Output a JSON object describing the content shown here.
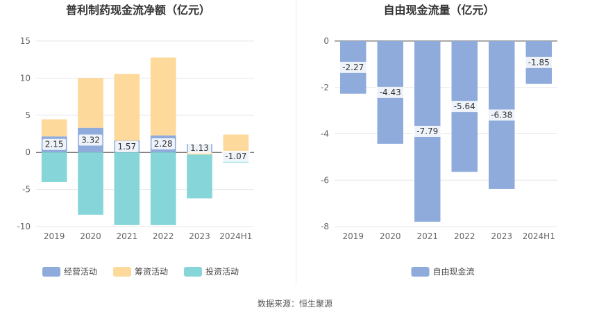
{
  "source": "数据来源：恒生聚源",
  "chart_data": [
    {
      "type": "bar",
      "stacked": true,
      "title": "普利制药现金流净额（亿元）",
      "categories": [
        "2019",
        "2020",
        "2021",
        "2022",
        "2023",
        "2024H1"
      ],
      "ylim": [
        -10,
        15
      ],
      "yticks": [
        15,
        10,
        5,
        0,
        -5,
        -10
      ],
      "legend_position": "bottom",
      "series": [
        {
          "name": "经营活动",
          "color": "#8eabdb",
          "values": [
            2.15,
            3.32,
            1.57,
            2.28,
            1.13,
            -1.07
          ],
          "labels": [
            "2.15",
            "3.32",
            "1.57",
            "2.28",
            "1.13",
            "-1.07"
          ]
        },
        {
          "name": "筹资活动",
          "color": "#fdd99b",
          "values": [
            2.3,
            6.7,
            9.0,
            10.5,
            -0.3,
            2.4
          ]
        },
        {
          "name": "投资活动",
          "color": "#86d6d9",
          "values": [
            -4.0,
            -8.4,
            -9.8,
            -9.8,
            -5.9,
            -0.3
          ]
        }
      ]
    },
    {
      "type": "bar",
      "title": "自由现金流量（亿元）",
      "categories": [
        "2019",
        "2020",
        "2021",
        "2022",
        "2023",
        "2024H1"
      ],
      "ylim": [
        -8,
        0
      ],
      "yticks": [
        0,
        -2,
        -4,
        -6,
        -8
      ],
      "legend_position": "bottom",
      "series": [
        {
          "name": "自由现金流",
          "color": "#8eabdb",
          "values": [
            -2.27,
            -4.43,
            -7.79,
            -5.64,
            -6.38,
            -1.85
          ],
          "labels": [
            "-2.27",
            "-4.43",
            "-7.79",
            "-5.64",
            "-6.38",
            "-1.85"
          ]
        }
      ]
    }
  ]
}
